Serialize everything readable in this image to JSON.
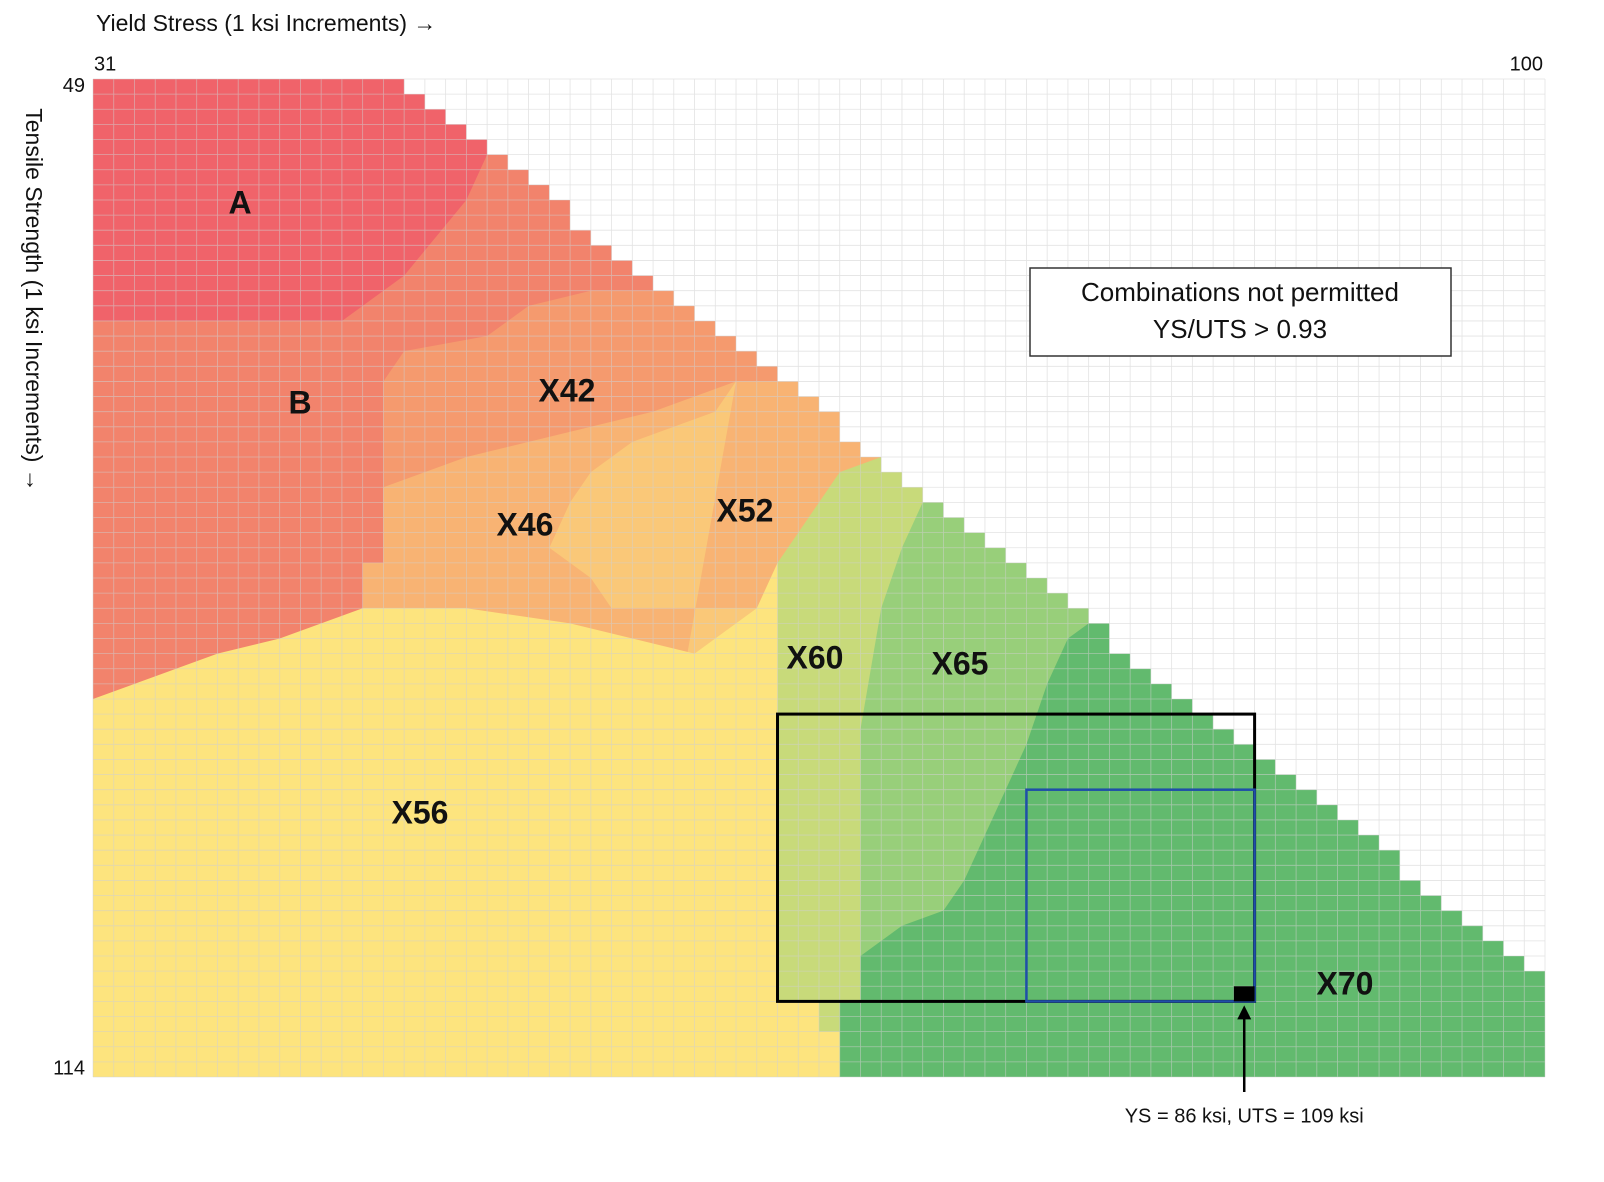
{
  "chart_data": {
    "type": "grid",
    "x_label": "Yield Stress (1 ksi Increments) →",
    "y_label": "Tensile Strength (1 ksi Increments) →",
    "xlim": [
      31,
      100
    ],
    "ylim": [
      49,
      114
    ],
    "xticks": [
      31,
      100
    ],
    "yticks": [
      49,
      114
    ],
    "max_ratio": 0.93,
    "note": [
      "Combinations not permitted",
      "YS/UTS > 0.93"
    ],
    "grades": [
      {
        "name": "A",
        "color": "#f0636a",
        "region": [
          [
            31,
            49
          ],
          [
            101,
            49
          ],
          [
            101,
            115
          ],
          [
            31,
            115
          ]
        ]
      },
      {
        "name": "B",
        "color": "#f2836c",
        "region": [
          [
            31,
            65
          ],
          [
            43,
            65
          ],
          [
            46,
            62
          ],
          [
            49,
            57
          ],
          [
            50,
            54
          ],
          [
            52,
            49
          ],
          [
            101,
            49
          ],
          [
            101,
            115
          ],
          [
            31,
            115
          ]
        ]
      },
      {
        "name": "X42",
        "color": "#f59a6e",
        "region": [
          [
            45,
            69
          ],
          [
            46,
            67
          ],
          [
            50,
            66
          ],
          [
            52,
            64
          ],
          [
            55,
            63
          ],
          [
            59,
            63
          ],
          [
            101,
            63
          ],
          [
            101,
            115
          ],
          [
            45,
            115
          ]
        ]
      },
      {
        "name": "X46",
        "color": "#f8b373",
        "region": [
          [
            45,
            76
          ],
          [
            49,
            74
          ],
          [
            52,
            73
          ],
          [
            55,
            72
          ],
          [
            58,
            71
          ],
          [
            60,
            70
          ],
          [
            62,
            69
          ],
          [
            101,
            69
          ],
          [
            101,
            115
          ],
          [
            44,
            115
          ],
          [
            44,
            81
          ],
          [
            45,
            81
          ]
        ]
      },
      {
        "name": "X52",
        "color": "#fac878",
        "region": [
          [
            62,
            69
          ],
          [
            61,
            71
          ],
          [
            59,
            72
          ],
          [
            57,
            73
          ],
          [
            55,
            75
          ],
          [
            54,
            77
          ],
          [
            53,
            80
          ],
          [
            55,
            82
          ],
          [
            56,
            84
          ],
          [
            101,
            84
          ],
          [
            101,
            115
          ],
          [
            56,
            115
          ]
        ]
      },
      {
        "name": "X56",
        "color": "#fde47e",
        "region": [
          [
            31,
            90
          ],
          [
            33,
            89
          ],
          [
            35,
            88
          ],
          [
            37,
            87
          ],
          [
            40,
            86
          ],
          [
            42,
            85
          ],
          [
            44,
            84
          ],
          [
            49,
            84
          ],
          [
            54,
            85
          ],
          [
            57,
            86
          ],
          [
            60,
            87
          ],
          [
            62,
            85
          ],
          [
            63,
            84
          ],
          [
            64,
            81
          ],
          [
            101,
            81
          ],
          [
            101,
            115
          ],
          [
            31,
            115
          ]
        ]
      },
      {
        "name": "X60",
        "color": "#c8da7a",
        "region": [
          [
            64,
            81
          ],
          [
            65,
            79
          ],
          [
            66,
            77
          ],
          [
            67,
            75
          ],
          [
            69,
            74
          ],
          [
            101,
            74
          ],
          [
            101,
            115
          ],
          [
            67,
            115
          ],
          [
            67,
            112
          ],
          [
            66,
            112
          ],
          [
            66,
            110
          ],
          [
            64,
            110
          ]
        ]
      },
      {
        "name": "X65",
        "color": "#98cf7a",
        "region": [
          [
            71,
            77
          ],
          [
            70,
            80
          ],
          [
            69,
            84
          ],
          [
            68,
            92
          ],
          [
            68,
            115
          ],
          [
            101,
            115
          ],
          [
            101,
            77
          ]
        ]
      },
      {
        "name": "X70",
        "color": "#62ba6e",
        "region": [
          [
            79,
            85
          ],
          [
            78,
            86
          ],
          [
            77,
            89
          ],
          [
            76,
            93
          ],
          [
            75,
            96
          ],
          [
            74,
            99
          ],
          [
            73,
            102
          ],
          [
            72,
            104
          ],
          [
            70,
            105
          ],
          [
            68,
            107
          ],
          [
            68,
            110
          ],
          [
            67,
            110
          ],
          [
            67,
            115
          ],
          [
            101,
            115
          ],
          [
            101,
            85
          ]
        ]
      }
    ],
    "highlight_boxes": [
      {
        "ys": [
          64,
          86
        ],
        "uts": [
          91,
          109
        ],
        "color": "#000000"
      },
      {
        "ys": [
          76,
          86
        ],
        "uts": [
          96,
          109
        ],
        "color": "#1f4fa8"
      }
    ],
    "point": {
      "ys": 86,
      "uts": 109,
      "label": "YS = 86 ksi, UTS = 109 ksi"
    }
  }
}
